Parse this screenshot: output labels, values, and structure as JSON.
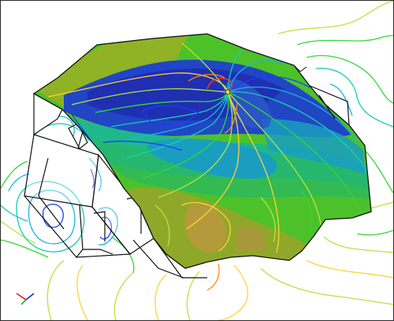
{
  "viewport": {
    "view": "3D perspective",
    "background": "#ffffff",
    "frame_color": "#2a2a2a"
  },
  "canopy": {
    "shape": "star-shaped membrane roof",
    "color_map": [
      "#1e2fb0",
      "#2a58c8",
      "#1a9ec0",
      "#27b56a",
      "#4cc12a",
      "#9ab825",
      "#c8a23a"
    ]
  },
  "contours": {
    "colors": [
      "#1a3cff",
      "#18b4e6",
      "#16d0b0",
      "#34d63a",
      "#b4e63c",
      "#ffd23a",
      "#ff8a1e",
      "#ff3c14"
    ]
  },
  "building": {
    "line_color": "#111111",
    "fill": "#ffffff"
  },
  "axes": {
    "icon": "xyz-triad-icon",
    "colors": [
      "#e01b1b",
      "#1b2be0",
      "#1bb01b"
    ]
  }
}
